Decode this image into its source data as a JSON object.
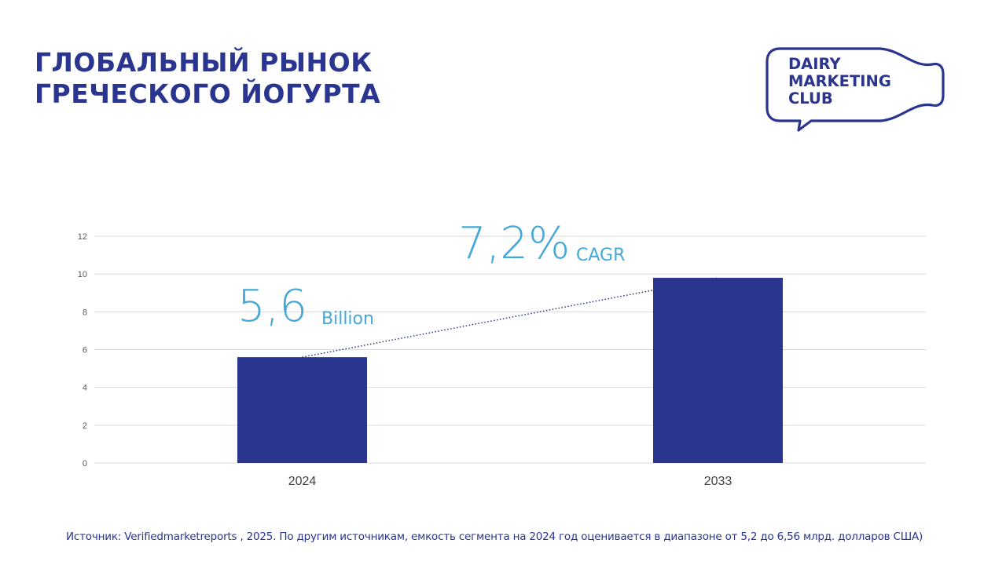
{
  "slide": {
    "title_line1": "ГЛОБАЛЬНЫЙ РЫНОК",
    "title_line2": "ГРЕЧЕСКОГО ЙОГУРТА",
    "source": "Источник: Verifiedmarketreports , 2025. По другим источникам, емкость сегмента на 2024 год оценивается в диапазоне от 5,2 до 6,56 млрд. долларов США)"
  },
  "logo": {
    "line1": "DAIRY",
    "line2": "MARKETING",
    "line3": "CLUB"
  },
  "annotations": {
    "value_big": "5,6",
    "value_small": "Billion",
    "cagr_big": "7,2%",
    "cagr_small": "CAGR"
  },
  "colors": {
    "bar": "#2a3590",
    "accent": "#45a8d8",
    "title": "#2a3590",
    "grid": "#d9d9d9"
  },
  "chart_data": {
    "type": "bar",
    "categories": [
      "2024",
      "2033"
    ],
    "values": [
      5.6,
      9.8
    ],
    "ylim": [
      0,
      12
    ],
    "yticks": [
      0,
      2,
      4,
      6,
      8,
      10,
      12
    ],
    "grid": true,
    "trendline": "dotted line connecting bar tops",
    "title": "",
    "xlabel": "",
    "ylabel": ""
  }
}
